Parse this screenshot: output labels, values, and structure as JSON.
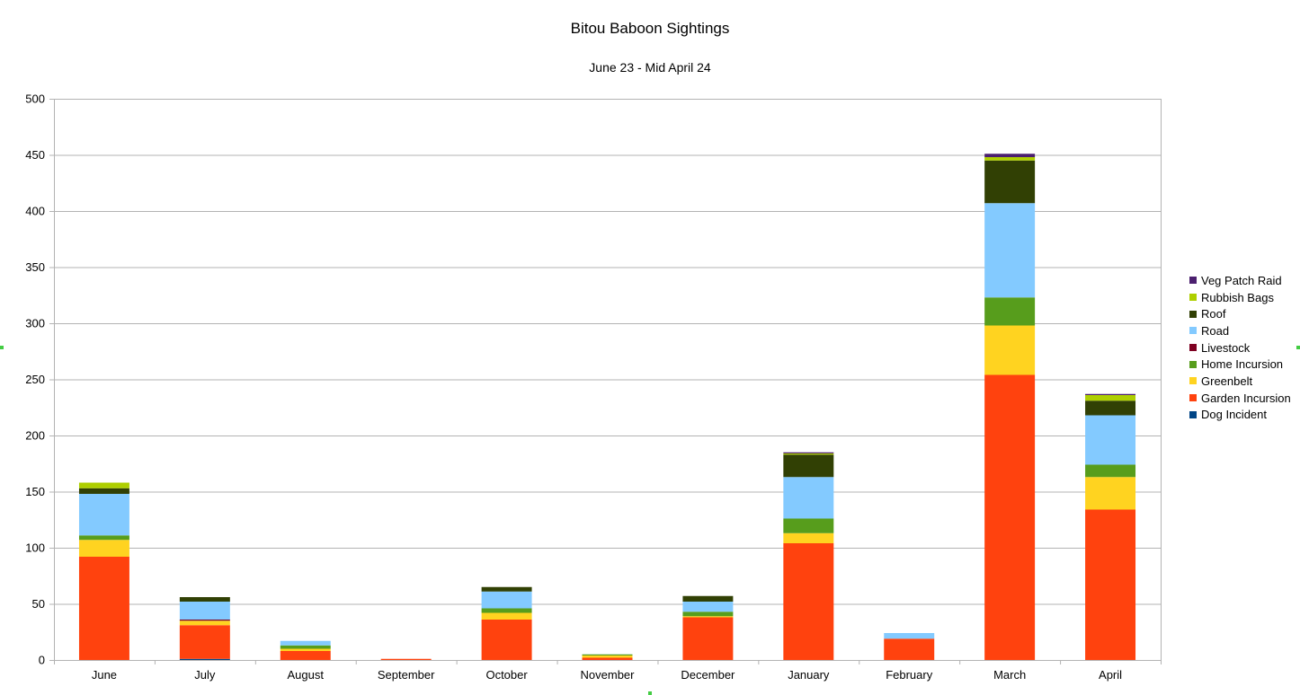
{
  "chart_data": {
    "type": "bar",
    "stacked": true,
    "title": "Bitou Baboon Sightings",
    "subtitle": "June 23 - Mid April 24",
    "xlabel": "",
    "ylabel": "",
    "ylim": [
      0,
      500
    ],
    "yticks": [
      0,
      50,
      100,
      150,
      200,
      250,
      300,
      350,
      400,
      450,
      500
    ],
    "grid": true,
    "legend_position": "right",
    "categories": [
      "June",
      "July",
      "August",
      "September",
      "October",
      "November",
      "December",
      "January",
      "February",
      "March",
      "April"
    ],
    "series": [
      {
        "name": "Dog Incident",
        "color": "#004586",
        "values": [
          0,
          1,
          0,
          0,
          0,
          0,
          0,
          0,
          0,
          0,
          0
        ]
      },
      {
        "name": "Garden Incursion",
        "color": "#ff420e",
        "values": [
          92,
          30,
          8,
          1,
          36,
          2,
          38,
          104,
          19,
          254,
          134
        ]
      },
      {
        "name": "Greenbelt",
        "color": "#ffd320",
        "values": [
          15,
          4,
          2,
          0,
          6,
          2,
          1,
          9,
          0,
          44,
          29
        ]
      },
      {
        "name": "Home Incursion",
        "color": "#579d1c",
        "values": [
          4,
          0,
          3,
          0,
          4,
          1,
          4,
          13,
          0,
          25,
          11
        ]
      },
      {
        "name": "Livestock",
        "color": "#7e0021",
        "values": [
          0,
          1,
          0,
          0,
          0,
          0,
          0,
          0,
          0,
          0,
          0
        ]
      },
      {
        "name": "Road",
        "color": "#83caff",
        "values": [
          37,
          16,
          4,
          0,
          15,
          0,
          9,
          37,
          5,
          84,
          44
        ]
      },
      {
        "name": "Roof",
        "color": "#314004",
        "values": [
          5,
          4,
          0,
          0,
          4,
          0,
          5,
          20,
          0,
          38,
          13
        ]
      },
      {
        "name": "Rubbish Bags",
        "color": "#aecf00",
        "values": [
          5,
          0,
          0,
          0,
          0,
          0,
          0,
          1,
          0,
          3,
          5
        ]
      },
      {
        "name": "Veg Patch Raid",
        "color": "#4b1f6f",
        "values": [
          0,
          0,
          0,
          0,
          0,
          0,
          0,
          1,
          0,
          3,
          1
        ]
      }
    ]
  }
}
